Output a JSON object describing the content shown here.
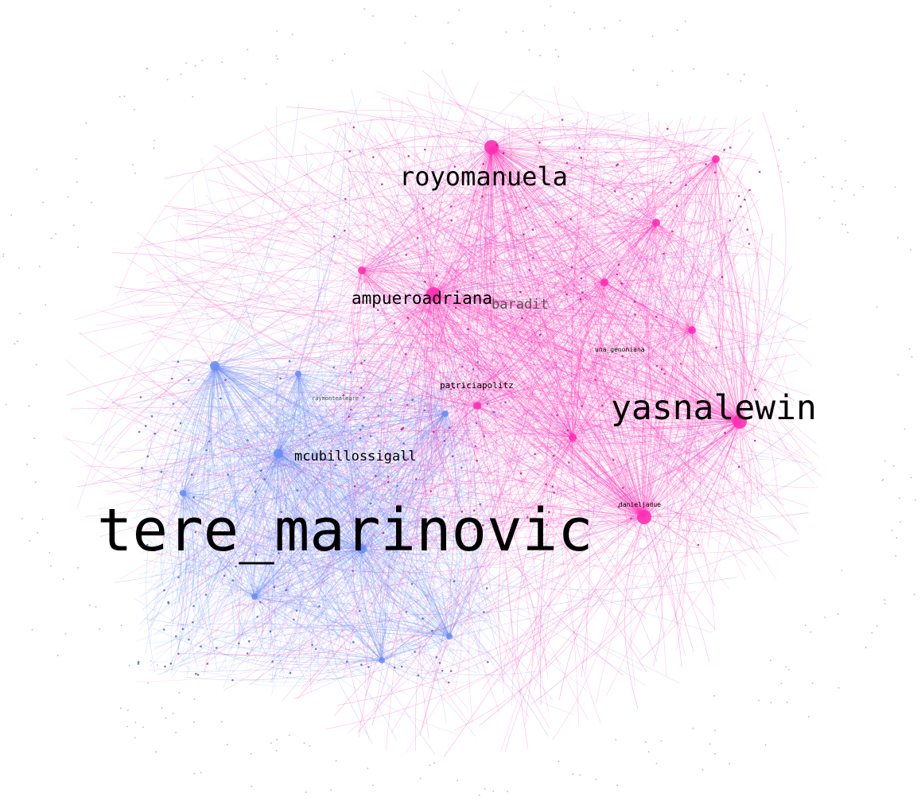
{
  "graph": {
    "colors": {
      "background": "#ffffff",
      "cluster_pink": "#ff2fb4",
      "cluster_blue": "#6b8ef5",
      "label": "#000000"
    },
    "clusters": [
      {
        "id": "pink",
        "color": "#ff2fb4"
      },
      {
        "id": "blue",
        "color": "#6b8ef5"
      }
    ],
    "labels": [
      {
        "id": "tere_marinovic",
        "text": "tere_marinovic",
        "cluster": "blue"
      },
      {
        "id": "yasnalewin",
        "text": "yasnalewin",
        "cluster": "pink"
      },
      {
        "id": "royomanuela",
        "text": "royomanuela",
        "cluster": "pink"
      },
      {
        "id": "ampueroadriana",
        "text": "ampueroadriana",
        "cluster": "pink"
      },
      {
        "id": "baradit",
        "text": "baradit",
        "cluster": "pink"
      },
      {
        "id": "mcubillossigall",
        "text": "mcubillossigall",
        "cluster": "blue"
      },
      {
        "id": "patriciapolitz",
        "text": "patriciapolitz",
        "cluster": "pink"
      },
      {
        "id": "una_genoniana",
        "text": "una_genoniana",
        "cluster": "pink"
      },
      {
        "id": "danieljadue",
        "text": "danieljadue",
        "cluster": "pink"
      },
      {
        "id": "raymontealegre",
        "text": "raymontealegre",
        "cluster": "blue"
      }
    ]
  }
}
